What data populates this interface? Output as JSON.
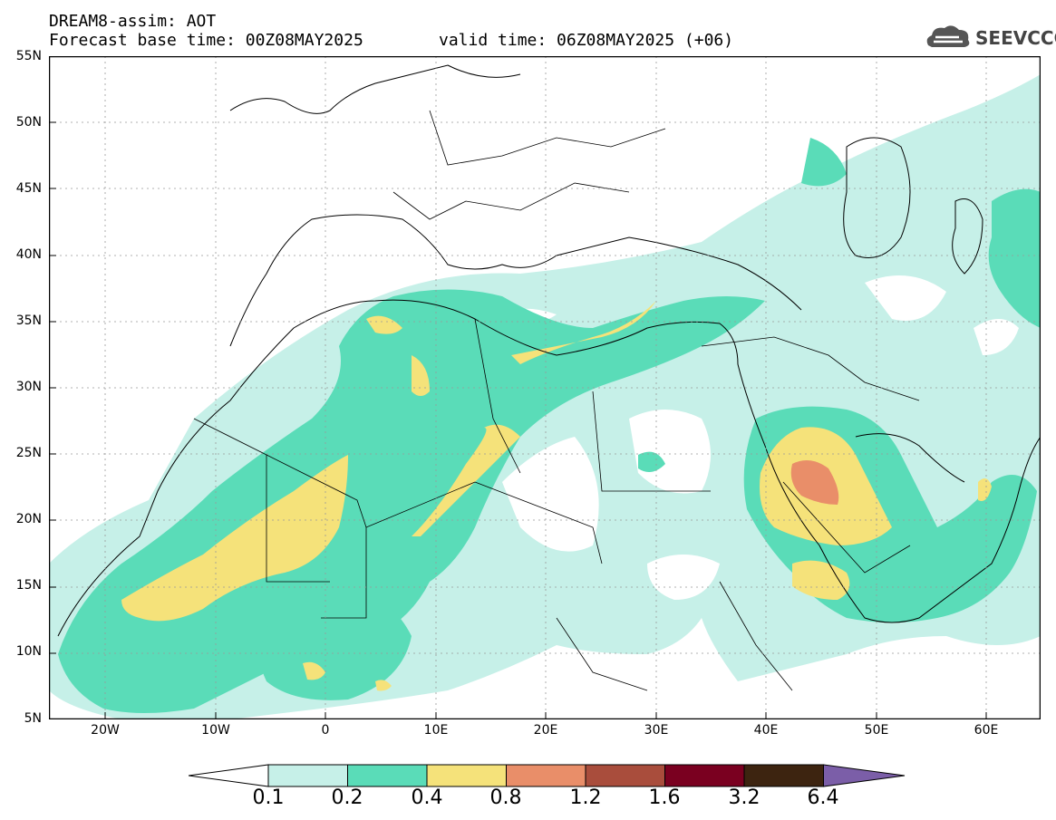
{
  "header": {
    "title": "DREAM8-assim: AOT",
    "base_time": "Forecast base time: 00Z08MAY2025",
    "valid_time": "valid time: 06Z08MAY2025 (+06)"
  },
  "logo": {
    "text": "SEEVCCC",
    "icon": "cloud-logo-icon"
  },
  "map": {
    "projection": "lat-lon",
    "lon_range": [
      -25,
      65
    ],
    "lat_range": [
      5,
      55
    ],
    "lat_labels": [
      "55N",
      "50N",
      "45N",
      "40N",
      "35N",
      "30N",
      "25N",
      "20N",
      "15N",
      "10N",
      "5N"
    ],
    "lon_labels": [
      "20W",
      "10W",
      "0",
      "10E",
      "20E",
      "30E",
      "40E",
      "50E",
      "60E"
    ],
    "grid": "dotted"
  },
  "colorbar": {
    "labels": [
      "0.1",
      "0.2",
      "0.4",
      "0.8",
      "1.2",
      "1.6",
      "3.2",
      "6.4"
    ],
    "colors": [
      "#ffffff",
      "#c6f0e8",
      "#5adcb8",
      "#f5e27a",
      "#e98e69",
      "#a94d3c",
      "#7a0020",
      "#3d2410",
      "#7b5ea8"
    ]
  },
  "fields": {
    "level_colors": {
      "l1": "#c6f0e8",
      "l2": "#5adcb8",
      "l3": "#f5e27a",
      "l4": "#e98e69"
    }
  }
}
